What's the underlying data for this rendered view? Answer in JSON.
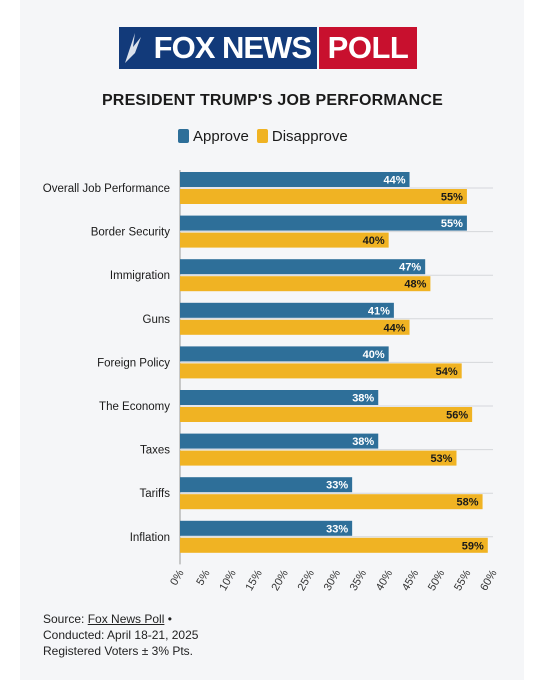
{
  "logo": {
    "brand": "FOX NEWS",
    "poll": "POLL"
  },
  "colors": {
    "approve": "#2e6f99",
    "disapprove": "#f0b323",
    "grid": "#d5d7db",
    "logo_blue": "#123a7a",
    "logo_red": "#c8102e"
  },
  "chart_data": {
    "type": "bar",
    "orientation": "horizontal",
    "title": "PRESIDENT TRUMP'S JOB PERFORMANCE",
    "categories": [
      "Overall Job Performance",
      "Border Security",
      "Immigration",
      "Guns",
      "Foreign Policy",
      "The Economy",
      "Taxes",
      "Tariffs",
      "Inflation"
    ],
    "series": [
      {
        "name": "Approve",
        "values": [
          44,
          55,
          47,
          41,
          40,
          38,
          38,
          33,
          33
        ]
      },
      {
        "name": "Disapprove",
        "values": [
          55,
          40,
          48,
          44,
          54,
          56,
          53,
          58,
          59
        ]
      }
    ],
    "value_suffix": "%",
    "xlim": [
      0,
      60
    ],
    "x_ticks": [
      "0%",
      "5%",
      "10%",
      "15%",
      "20%",
      "25%",
      "30%",
      "35%",
      "40%",
      "45%",
      "50%",
      "55%",
      "60%"
    ],
    "legend": "top",
    "grid": true
  },
  "source": {
    "prefix": "Source: ",
    "link": "Fox News Poll",
    "bullet": " •",
    "conducted": "Conducted: April 18-21, 2025",
    "voters": "Registered Voters ± 3% Pts."
  }
}
